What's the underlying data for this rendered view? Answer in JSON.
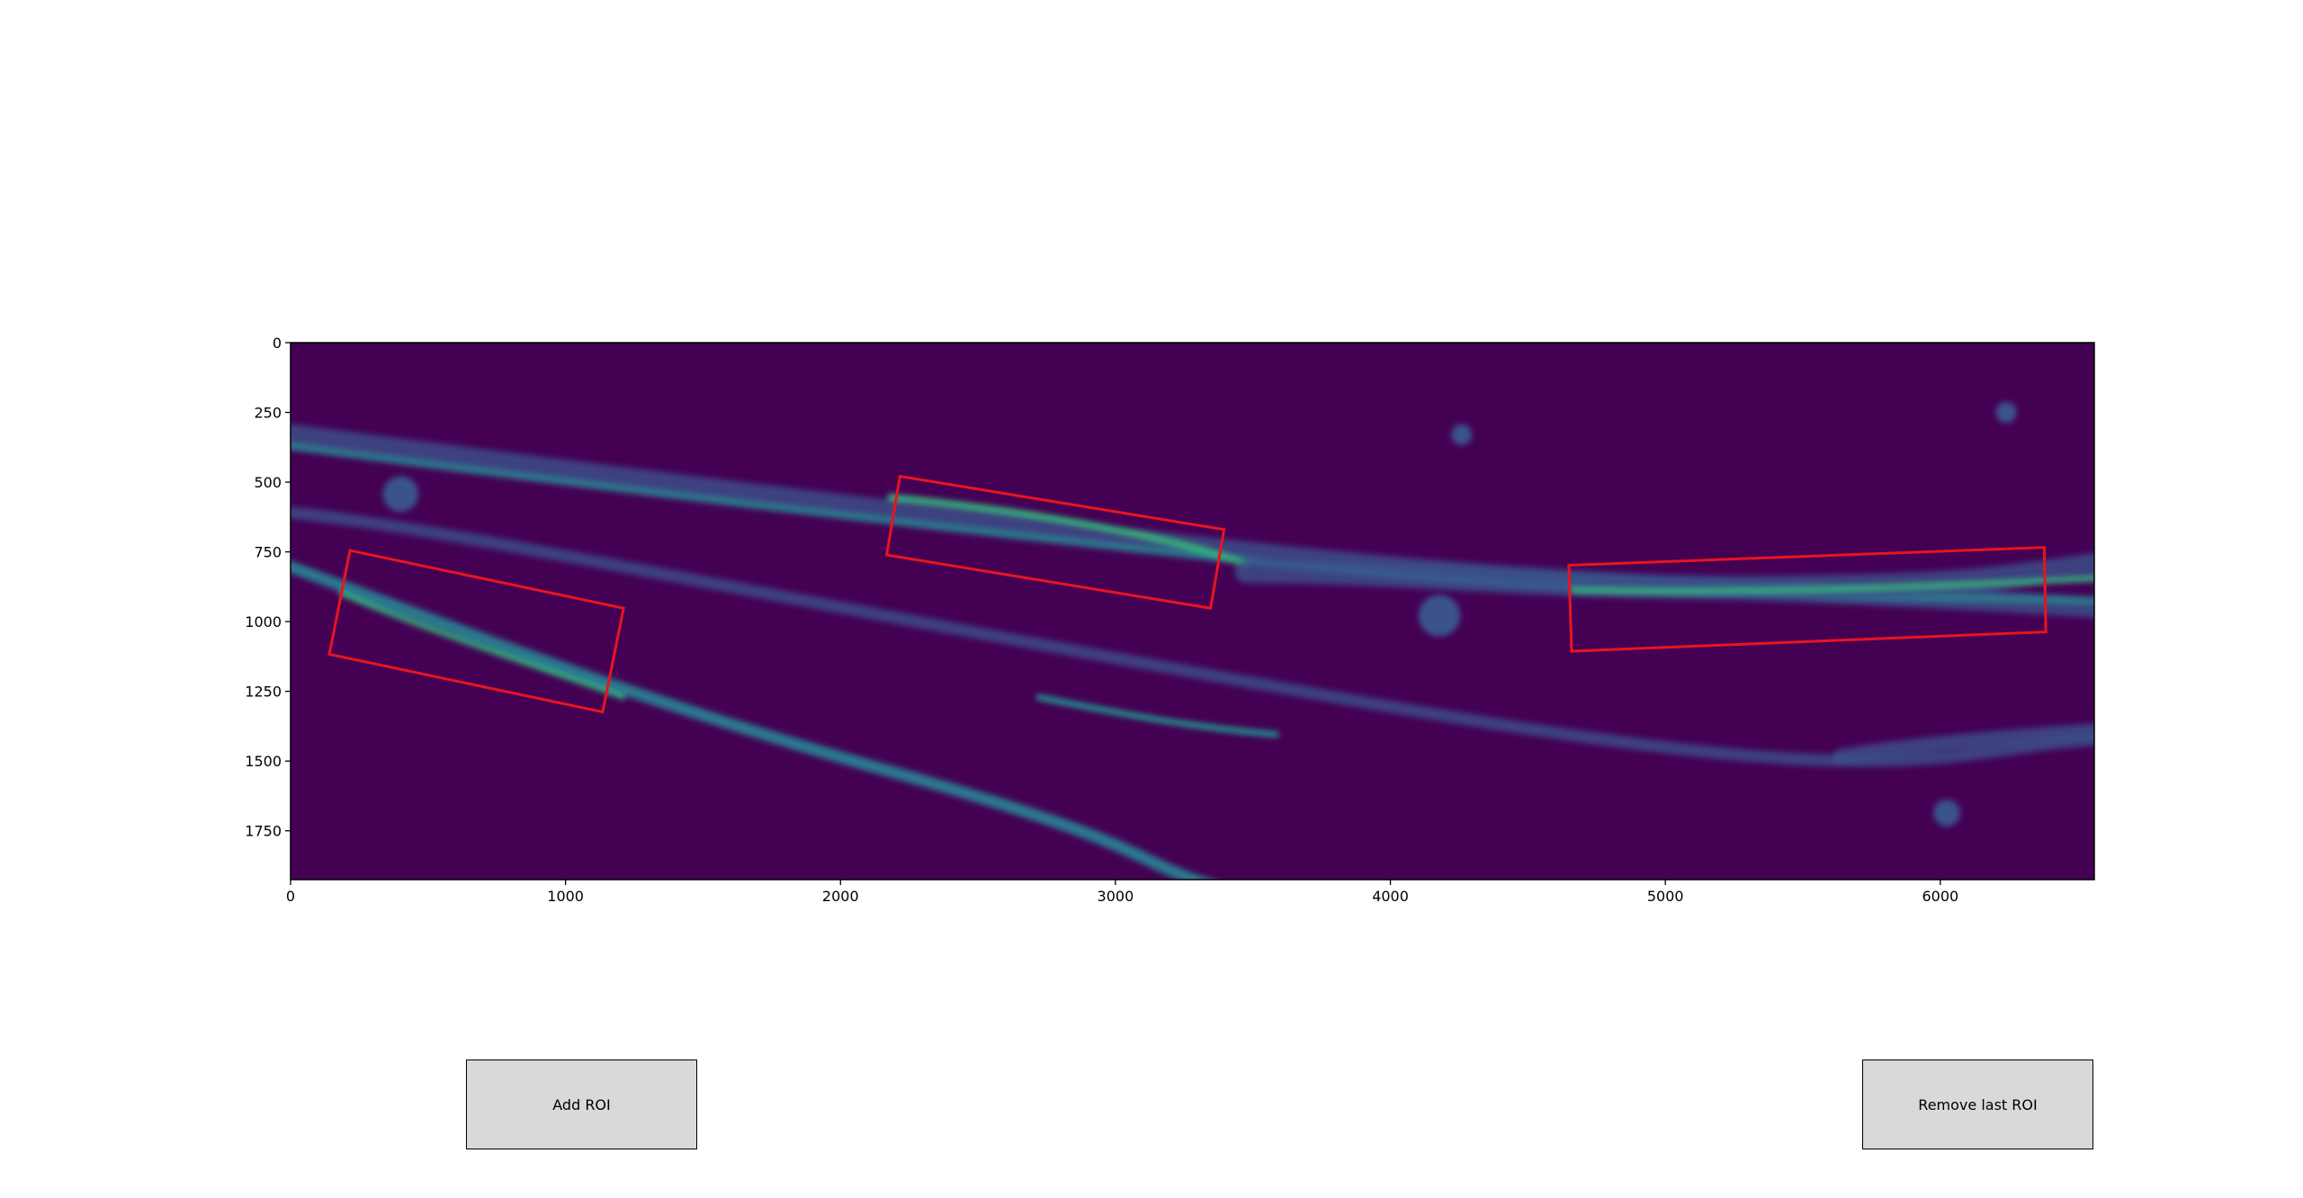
{
  "chart_data": {
    "type": "image",
    "xlim": [
      0,
      6560
    ],
    "ylim": [
      1925,
      0
    ],
    "xticks": [
      0,
      1000,
      2000,
      3000,
      4000,
      5000,
      6000
    ],
    "yticks": [
      0,
      250,
      500,
      750,
      1000,
      1250,
      1500,
      1750
    ],
    "roi_color": "#e8141e",
    "rois": [
      {
        "x": [
          216,
          1211,
          1135,
          141
        ],
        "y": [
          745,
          952,
          1324,
          1117
        ]
      },
      {
        "x": [
          2216,
          3395,
          3346,
          2168
        ],
        "y": [
          479,
          670,
          952,
          761
        ]
      },
      {
        "x": [
          4649,
          6378,
          6384,
          4659
        ],
        "y": [
          798,
          734,
          1037,
          1106
        ]
      }
    ]
  },
  "buttons": [
    {
      "label": "Add ROI"
    },
    {
      "label": "Remove last ROI"
    }
  ]
}
